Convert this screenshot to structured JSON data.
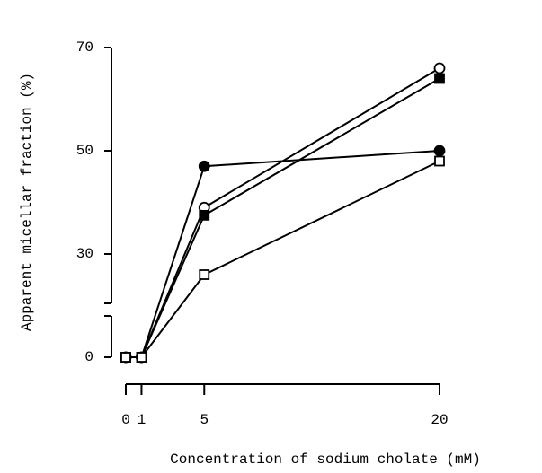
{
  "chart_data": {
    "type": "line",
    "y_label": "Apparent micellar fraction (%)",
    "x_label": "Concentration of sodium cholate (mM)",
    "x": [
      0,
      1,
      5,
      20
    ],
    "xlim": [
      0,
      20
    ],
    "xticks": [
      0,
      1,
      5,
      20
    ],
    "ylim": [
      0,
      70
    ],
    "yticks": [
      0,
      30,
      50,
      70
    ],
    "y_break": [
      0,
      10
    ],
    "series": [
      {
        "color": "#000000",
        "marker": "circle",
        "marker_fill": "open",
        "values": [
          0,
          0,
          39,
          66
        ]
      },
      {
        "color": "#000000",
        "marker": "square",
        "marker_fill": "filled",
        "values": [
          0,
          0,
          37.5,
          64
        ]
      },
      {
        "color": "#000000",
        "marker": "circle",
        "marker_fill": "filled",
        "values": [
          0,
          0,
          47,
          50
        ]
      },
      {
        "color": "#000000",
        "marker": "square",
        "marker_fill": "open",
        "values": [
          0,
          0,
          26,
          48
        ]
      }
    ]
  }
}
